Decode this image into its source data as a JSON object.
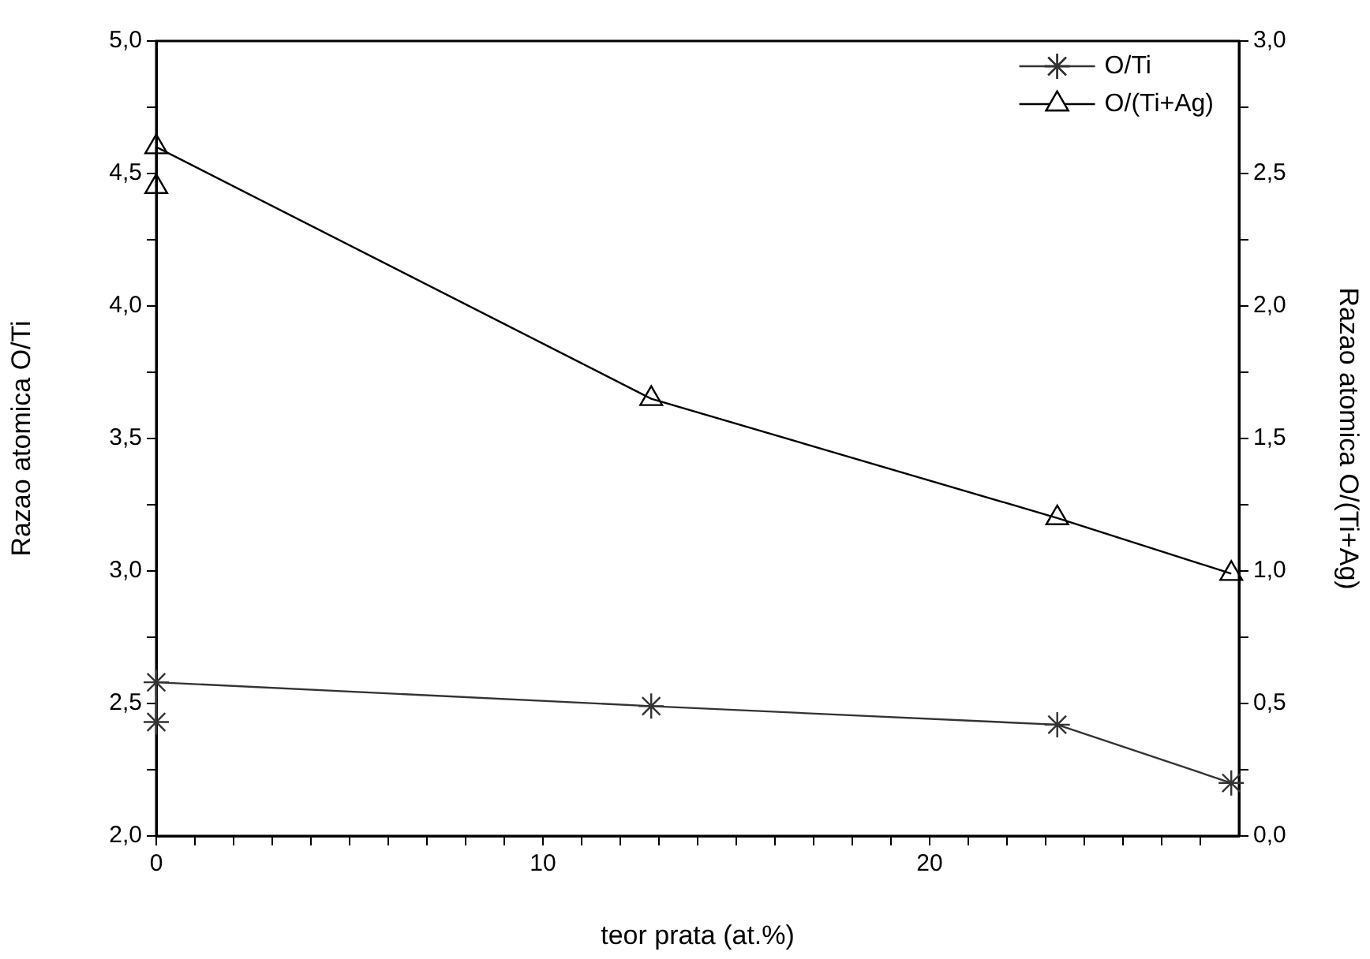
{
  "chart_data": {
    "type": "line",
    "xlabel": "teor prata (at.%)",
    "ylabel": "Razao atomica O/Ti",
    "y2label": "Razao atomica O/(Ti+Ag)",
    "xlim": [
      0,
      28
    ],
    "xticks": [
      0,
      {
        "value": 1,
        "label": null
      },
      {
        "value": 2,
        "label": null
      },
      {
        "value": 3,
        "label": null
      },
      {
        "value": 4,
        "label": null
      },
      {
        "value": 5,
        "label": null
      },
      {
        "value": 6,
        "label": null
      },
      {
        "value": 7,
        "label": null
      },
      {
        "value": 8,
        "label": null
      },
      {
        "value": 9,
        "label": null
      },
      10,
      {
        "value": 11,
        "label": null
      },
      {
        "value": 12,
        "label": null
      },
      {
        "value": 13,
        "label": null
      },
      {
        "value": 14,
        "label": null
      },
      {
        "value": 15,
        "label": null
      },
      {
        "value": 16,
        "label": null
      },
      {
        "value": 17,
        "label": null
      },
      {
        "value": 18,
        "label": null
      },
      {
        "value": 19,
        "label": null
      },
      20,
      {
        "value": 21,
        "label": null
      },
      {
        "value": 22,
        "label": null
      },
      {
        "value": 23,
        "label": null
      },
      {
        "value": 24,
        "label": null
      },
      {
        "value": 25,
        "label": null
      },
      {
        "value": 26,
        "label": null
      },
      {
        "value": 27,
        "label": null
      }
    ],
    "ylim": [
      2,
      5
    ],
    "yticks": [
      {
        "value": 2,
        "label": "2,0"
      },
      {
        "value": 2.25,
        "label": null
      },
      {
        "value": 2.5,
        "label": "2,5"
      },
      {
        "value": 2.75,
        "label": null
      },
      {
        "value": 3,
        "label": "3,0"
      },
      {
        "value": 3.25,
        "label": null
      },
      {
        "value": 3.5,
        "label": "3,5"
      },
      {
        "value": 3.75,
        "label": null
      },
      {
        "value": 4,
        "label": "4,0"
      },
      {
        "value": 4.25,
        "label": null
      },
      {
        "value": 4.5,
        "label": "4,5"
      },
      {
        "value": 4.75,
        "label": null
      },
      {
        "value": 5,
        "label": "5,0"
      }
    ],
    "y2lim": [
      0,
      3
    ],
    "y2ticks": [
      {
        "value": 0,
        "label": "0,0"
      },
      {
        "value": 0.25,
        "label": null
      },
      {
        "value": 0.5,
        "label": "0,5"
      },
      {
        "value": 0.75,
        "label": null
      },
      {
        "value": 1,
        "label": "1,0"
      },
      {
        "value": 1.25,
        "label": null
      },
      {
        "value": 1.5,
        "label": "1,5"
      },
      {
        "value": 1.75,
        "label": null
      },
      {
        "value": 2,
        "label": "2,0"
      },
      {
        "value": 2.25,
        "label": null
      },
      {
        "value": 2.5,
        "label": "2,5"
      },
      {
        "value": 2.75,
        "label": null
      },
      {
        "value": 3,
        "label": "3,0"
      }
    ],
    "grid": false,
    "legend": "top right",
    "series": [
      {
        "name": "O/Ti",
        "color": "#333333",
        "marker": "cross",
        "x": [
          0,
          0,
          12.8,
          23.3,
          27.8
        ],
        "values": [
          2.43,
          2.58,
          2.49,
          2.42,
          2.2
        ]
      },
      {
        "name": "O/(Ti+Ag)",
        "color": "#000000",
        "marker": "triangle",
        "axis": "y2",
        "x": [
          0,
          0,
          12.8,
          23.3,
          27.8
        ],
        "values": [
          2.45,
          2.6,
          1.65,
          1.2,
          0.99
        ]
      }
    ]
  }
}
